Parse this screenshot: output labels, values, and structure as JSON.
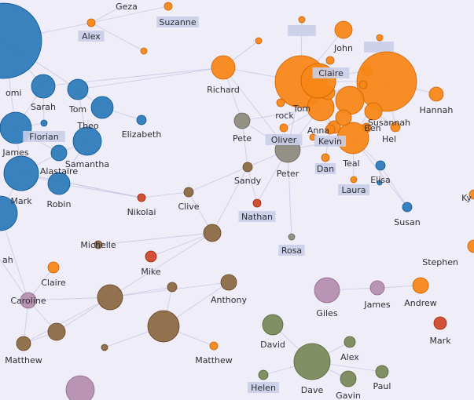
{
  "colors": {
    "background": "#efedf7",
    "link": "#b9bedf",
    "blue": "#2f7cbb",
    "orange": "#f78818",
    "green": "#7a8a5c",
    "brown": "#8c6a46",
    "red": "#cc4a2e",
    "grey": "#8e8b7e",
    "mauve": "#b58fb0",
    "highlight": "#c9cde8"
  },
  "nodes": [
    {
      "label": "",
      "color": "blue"
    },
    {
      "label": "Geza",
      "color": "orange"
    },
    {
      "label": "Suzanne",
      "color": "orange"
    },
    {
      "label": "Alex",
      "color": "orange"
    },
    {
      "label": "",
      "color": "orange"
    },
    {
      "label": "",
      "color": "orange"
    },
    {
      "label": "John",
      "color": "orange"
    },
    {
      "label": "",
      "color": "orange"
    },
    {
      "label": "",
      "color": "orange"
    },
    {
      "label": "Richard",
      "color": "orange"
    },
    {
      "label": "Claire",
      "color": "orange"
    },
    {
      "label": "",
      "color": "orange"
    },
    {
      "label": "",
      "color": "orange"
    },
    {
      "label": "",
      "color": "orange"
    },
    {
      "label": "Tom",
      "color": "orange"
    },
    {
      "label": "rock",
      "color": "orange"
    },
    {
      "label": "Hannah",
      "color": "orange"
    },
    {
      "label": "Anna",
      "color": "orange"
    },
    {
      "label": "Susannah",
      "color": "orange"
    },
    {
      "label": "Ben",
      "color": "orange"
    },
    {
      "label": "Hel",
      "color": "orange"
    },
    {
      "label": "Kevin",
      "color": "orange"
    },
    {
      "label": "Teal",
      "color": "orange"
    },
    {
      "label": "Oliver",
      "color": "orange"
    },
    {
      "label": "Dan",
      "color": "orange"
    },
    {
      "label": "Laura",
      "color": "orange"
    },
    {
      "label": "Elisa",
      "color": "blue"
    },
    {
      "label": "Susan",
      "color": "blue"
    },
    {
      "label": "Pete",
      "color": "grey"
    },
    {
      "label": "Peter",
      "color": "grey"
    },
    {
      "label": "Sandy",
      "color": "brown"
    },
    {
      "label": "omi",
      "color": "blue"
    },
    {
      "label": "Sarah",
      "color": "blue"
    },
    {
      "label": "Tom",
      "color": "blue"
    },
    {
      "label": "",
      "color": "blue"
    },
    {
      "label": "Theo",
      "color": "blue"
    },
    {
      "label": "Elizabeth",
      "color": "blue"
    },
    {
      "label": "Florian",
      "color": "blue"
    },
    {
      "label": "James",
      "color": "blue"
    },
    {
      "label": "Samantha",
      "color": "blue"
    },
    {
      "label": "Alastaire",
      "color": "blue"
    },
    {
      "label": "Mark",
      "color": "blue"
    },
    {
      "label": "Robin",
      "color": "blue"
    },
    {
      "label": "",
      "color": "blue"
    },
    {
      "label": "Nikolai",
      "color": "red"
    },
    {
      "label": "Clive",
      "color": "brown"
    },
    {
      "label": "Nathan",
      "color": "red"
    },
    {
      "label": "Rosa",
      "color": "grey"
    },
    {
      "label": "Ky",
      "color": "orange"
    },
    {
      "label": "Stephen",
      "color": "orange"
    },
    {
      "label": "",
      "color": "brown"
    },
    {
      "label": "ah",
      "color": "orange"
    },
    {
      "label": "Michelle",
      "color": "brown"
    },
    {
      "label": "Claire",
      "color": "orange"
    },
    {
      "label": "Mike",
      "color": "red"
    },
    {
      "label": "Anthony",
      "color": "brown"
    },
    {
      "label": "",
      "color": "brown"
    },
    {
      "label": "",
      "color": "brown"
    },
    {
      "label": "Caroline",
      "color": "mauve"
    },
    {
      "label": "Giles",
      "color": "mauve"
    },
    {
      "label": "James",
      "color": "mauve"
    },
    {
      "label": "Andrew",
      "color": "orange"
    },
    {
      "label": "Mark",
      "color": "red"
    },
    {
      "label": "",
      "color": "brown"
    },
    {
      "label": "",
      "color": "brown"
    },
    {
      "label": "Matthew",
      "color": "brown"
    },
    {
      "label": "Matthew",
      "color": "orange"
    },
    {
      "label": "",
      "color": "brown"
    },
    {
      "label": "David",
      "color": "green"
    },
    {
      "label": "Alex",
      "color": "green"
    },
    {
      "label": "",
      "color": "green"
    },
    {
      "label": "Helen",
      "color": "green"
    },
    {
      "label": "Dave",
      "color": "green"
    },
    {
      "label": "Paul",
      "color": "green"
    },
    {
      "label": "Gavin",
      "color": "green"
    },
    {
      "label": "",
      "color": "mauve"
    },
    {
      "label": "",
      "color": "orange"
    },
    {
      "label": "",
      "color": "orange"
    },
    {
      "label": "",
      "color": "orange"
    },
    {
      "label": "",
      "color": "orange"
    },
    {
      "label": "",
      "color": "orange"
    },
    {
      "label": "",
      "color": "orange"
    },
    {
      "label": "",
      "color": "blue"
    }
  ],
  "highlight_boxes": [
    {
      "label": ""
    },
    {
      "label": ""
    }
  ]
}
